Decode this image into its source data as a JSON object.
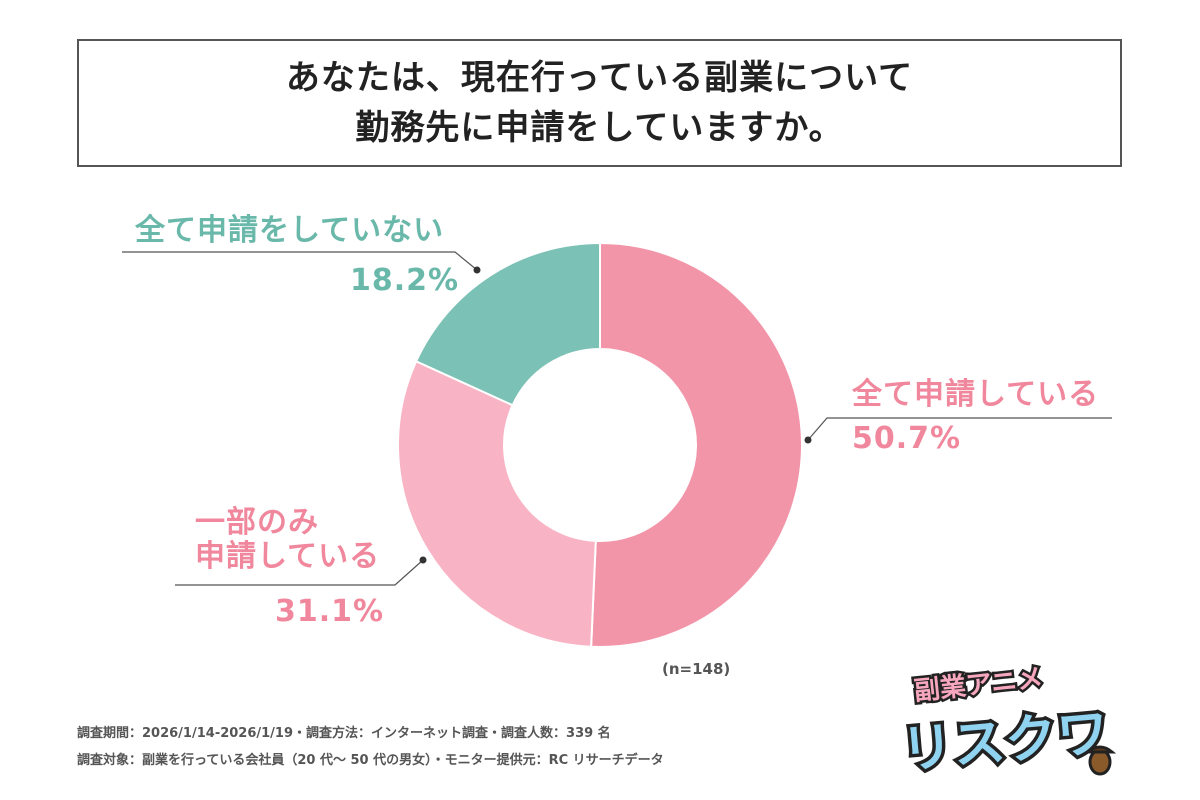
{
  "title": {
    "line1": "あなたは、現在行っている副業について",
    "line2": "勤務先に申請をしていますか。"
  },
  "chart_data": {
    "type": "pie",
    "donut": true,
    "categories": [
      "全て申請している",
      "一部のみ申請している",
      "全て申請をしていない"
    ],
    "values": [
      50.7,
      31.1,
      18.2
    ],
    "value_labels": [
      "50.7%",
      "31.1%",
      "18.2%"
    ],
    "colors": [
      "#f395a9",
      "#f8b3c4",
      "#7cc1b5"
    ],
    "label_colors": [
      "#f0879c",
      "#f0879c",
      "#6ab8aa"
    ],
    "label_lines": [
      [
        "全て申請している"
      ],
      [
        "一部のみ",
        "申請している"
      ],
      [
        "全て申請をしていない"
      ]
    ],
    "start": "top, clockwise",
    "legend": "none"
  },
  "sample": "(n=148)",
  "footnotes": {
    "line1": "調査期間：2026/1/14-2026/1/19・調査方法：インターネット調査・調査人数：339 名",
    "line2": "調査対象：副業を行っている会社員（20 代～ 50 代の男女）・モニター提供元：RC リサーチデータ"
  },
  "logo": {
    "top": "副業アニメ",
    "main": "リスクワ"
  }
}
